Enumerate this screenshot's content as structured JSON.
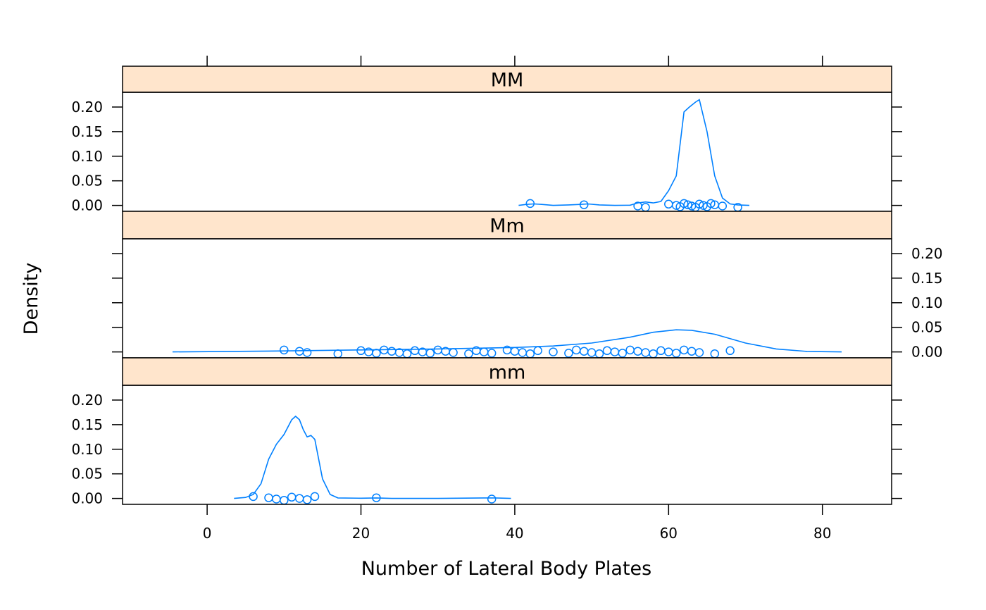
{
  "chart_data": {
    "type": "line",
    "subtype": "lattice-densityplot",
    "title": "",
    "xlabel": "Number of Lateral Body Plates",
    "ylabel": "Density",
    "xlim": [
      -11,
      89
    ],
    "ylim": [
      -0.012,
      0.23
    ],
    "x_ticks": [
      0,
      20,
      40,
      60,
      80
    ],
    "y_ticks": [
      0.0,
      0.05,
      0.1,
      0.15,
      0.2
    ],
    "y_tick_labels": [
      "0.00",
      "0.05",
      "0.10",
      "0.15",
      "0.20"
    ],
    "grid": false,
    "legend": "none",
    "colors": {
      "series": "#0080ff",
      "strip": "#ffe5cc",
      "frame": "#000000"
    },
    "panels": [
      {
        "name": "MM",
        "density_curve": [
          [
            40.5,
            0.0
          ],
          [
            41.5,
            0.002
          ],
          [
            42.5,
            0.003
          ],
          [
            43.5,
            0.002
          ],
          [
            45,
            0.0
          ],
          [
            47,
            0.001
          ],
          [
            48.5,
            0.002
          ],
          [
            49.5,
            0.003
          ],
          [
            51,
            0.001
          ],
          [
            53,
            0.0
          ],
          [
            55,
            0.0005
          ],
          [
            56,
            0.005
          ],
          [
            57,
            0.007
          ],
          [
            58,
            0.005
          ],
          [
            59,
            0.008
          ],
          [
            60,
            0.03
          ],
          [
            61,
            0.06
          ],
          [
            62,
            0.19
          ],
          [
            62.7,
            0.2
          ],
          [
            63.5,
            0.21
          ],
          [
            64,
            0.215
          ],
          [
            65,
            0.15
          ],
          [
            66,
            0.06
          ],
          [
            67,
            0.015
          ],
          [
            68,
            0.003
          ],
          [
            69,
            0.001
          ],
          [
            70.5,
            0.0
          ]
        ],
        "points": [
          [
            42,
            0
          ],
          [
            49,
            0
          ],
          [
            56,
            0
          ],
          [
            57,
            0
          ],
          [
            60,
            0
          ],
          [
            61,
            0
          ],
          [
            61.5,
            0
          ],
          [
            62,
            0
          ],
          [
            62.5,
            0
          ],
          [
            63,
            0
          ],
          [
            63.5,
            0
          ],
          [
            64,
            0
          ],
          [
            64.5,
            0
          ],
          [
            65,
            0
          ],
          [
            65.5,
            0
          ],
          [
            66,
            0
          ],
          [
            67,
            0
          ],
          [
            69,
            0
          ]
        ]
      },
      {
        "name": "Mm",
        "density_curve": [
          [
            -4.5,
            0.0
          ],
          [
            10,
            0.002
          ],
          [
            20,
            0.004
          ],
          [
            30,
            0.006
          ],
          [
            40,
            0.009
          ],
          [
            45,
            0.012
          ],
          [
            50,
            0.018
          ],
          [
            55,
            0.03
          ],
          [
            58,
            0.04
          ],
          [
            61,
            0.045
          ],
          [
            63,
            0.044
          ],
          [
            66,
            0.036
          ],
          [
            70,
            0.018
          ],
          [
            74,
            0.006
          ],
          [
            78,
            0.001
          ],
          [
            82.5,
            0.0
          ]
        ],
        "points": [
          [
            10,
            0
          ],
          [
            12,
            0
          ],
          [
            13,
            0
          ],
          [
            17,
            0
          ],
          [
            20,
            0
          ],
          [
            21,
            0
          ],
          [
            22,
            0
          ],
          [
            23,
            0
          ],
          [
            24,
            0
          ],
          [
            25,
            0
          ],
          [
            26,
            0
          ],
          [
            27,
            0
          ],
          [
            28,
            0
          ],
          [
            29,
            0
          ],
          [
            30,
            0
          ],
          [
            31,
            0
          ],
          [
            32,
            0
          ],
          [
            34,
            0
          ],
          [
            35,
            0
          ],
          [
            36,
            0
          ],
          [
            37,
            0
          ],
          [
            39,
            0
          ],
          [
            40,
            0
          ],
          [
            41,
            0
          ],
          [
            42,
            0
          ],
          [
            43,
            0
          ],
          [
            45,
            0
          ],
          [
            47,
            0
          ],
          [
            48,
            0
          ],
          [
            49,
            0
          ],
          [
            50,
            0
          ],
          [
            51,
            0
          ],
          [
            52,
            0
          ],
          [
            53,
            0
          ],
          [
            54,
            0
          ],
          [
            55,
            0
          ],
          [
            56,
            0
          ],
          [
            57,
            0
          ],
          [
            58,
            0
          ],
          [
            59,
            0
          ],
          [
            60,
            0
          ],
          [
            61,
            0
          ],
          [
            62,
            0
          ],
          [
            63,
            0
          ],
          [
            64,
            0
          ],
          [
            66,
            0
          ],
          [
            68,
            0
          ]
        ]
      },
      {
        "name": "mm",
        "density_curve": [
          [
            3.5,
            0.0
          ],
          [
            5,
            0.002
          ],
          [
            6,
            0.008
          ],
          [
            7,
            0.03
          ],
          [
            8,
            0.08
          ],
          [
            9,
            0.11
          ],
          [
            10,
            0.13
          ],
          [
            11,
            0.16
          ],
          [
            11.5,
            0.167
          ],
          [
            12,
            0.16
          ],
          [
            12.5,
            0.14
          ],
          [
            13,
            0.125
          ],
          [
            13.5,
            0.128
          ],
          [
            14,
            0.12
          ],
          [
            15,
            0.04
          ],
          [
            16,
            0.008
          ],
          [
            17,
            0.001
          ],
          [
            20,
            0.0005
          ],
          [
            22,
            0.001
          ],
          [
            24,
            0.0
          ],
          [
            30,
            0.0
          ],
          [
            36,
            0.001
          ],
          [
            37.5,
            0.001
          ],
          [
            39.5,
            0.0
          ]
        ],
        "points": [
          [
            6,
            0
          ],
          [
            8,
            0
          ],
          [
            9,
            0
          ],
          [
            10,
            0
          ],
          [
            11,
            0
          ],
          [
            12,
            0
          ],
          [
            13,
            0
          ],
          [
            14,
            0
          ],
          [
            22,
            0
          ],
          [
            37,
            0
          ]
        ]
      }
    ]
  }
}
